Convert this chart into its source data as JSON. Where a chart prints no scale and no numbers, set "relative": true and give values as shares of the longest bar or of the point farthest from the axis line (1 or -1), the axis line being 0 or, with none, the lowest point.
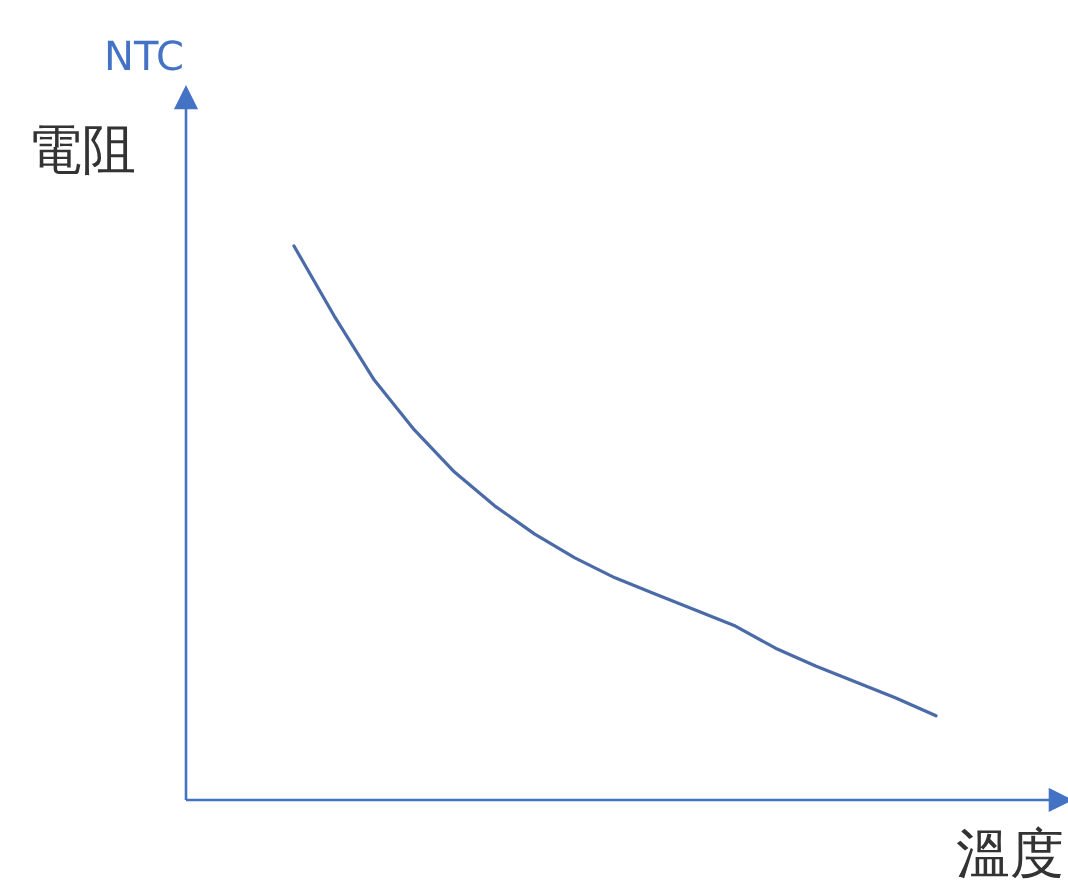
{
  "chart_data": {
    "type": "line",
    "title": "NTC",
    "ylabel": "電阻",
    "xlabel": "溫度",
    "relative": true,
    "categories": [
      null,
      null,
      null,
      null,
      null,
      null,
      null,
      null,
      null,
      null,
      null,
      null,
      null,
      null,
      null,
      null,
      null
    ],
    "series": [
      {
        "color": "#4a6aa8",
        "values": [
          1,
          0.874,
          0.758,
          0.668,
          0.592,
          0.531,
          0.48,
          0.437,
          0.401,
          0.372,
          0.343,
          0.314,
          0.274,
          0.242,
          0.213,
          0.184,
          0.152
        ]
      }
    ]
  }
}
